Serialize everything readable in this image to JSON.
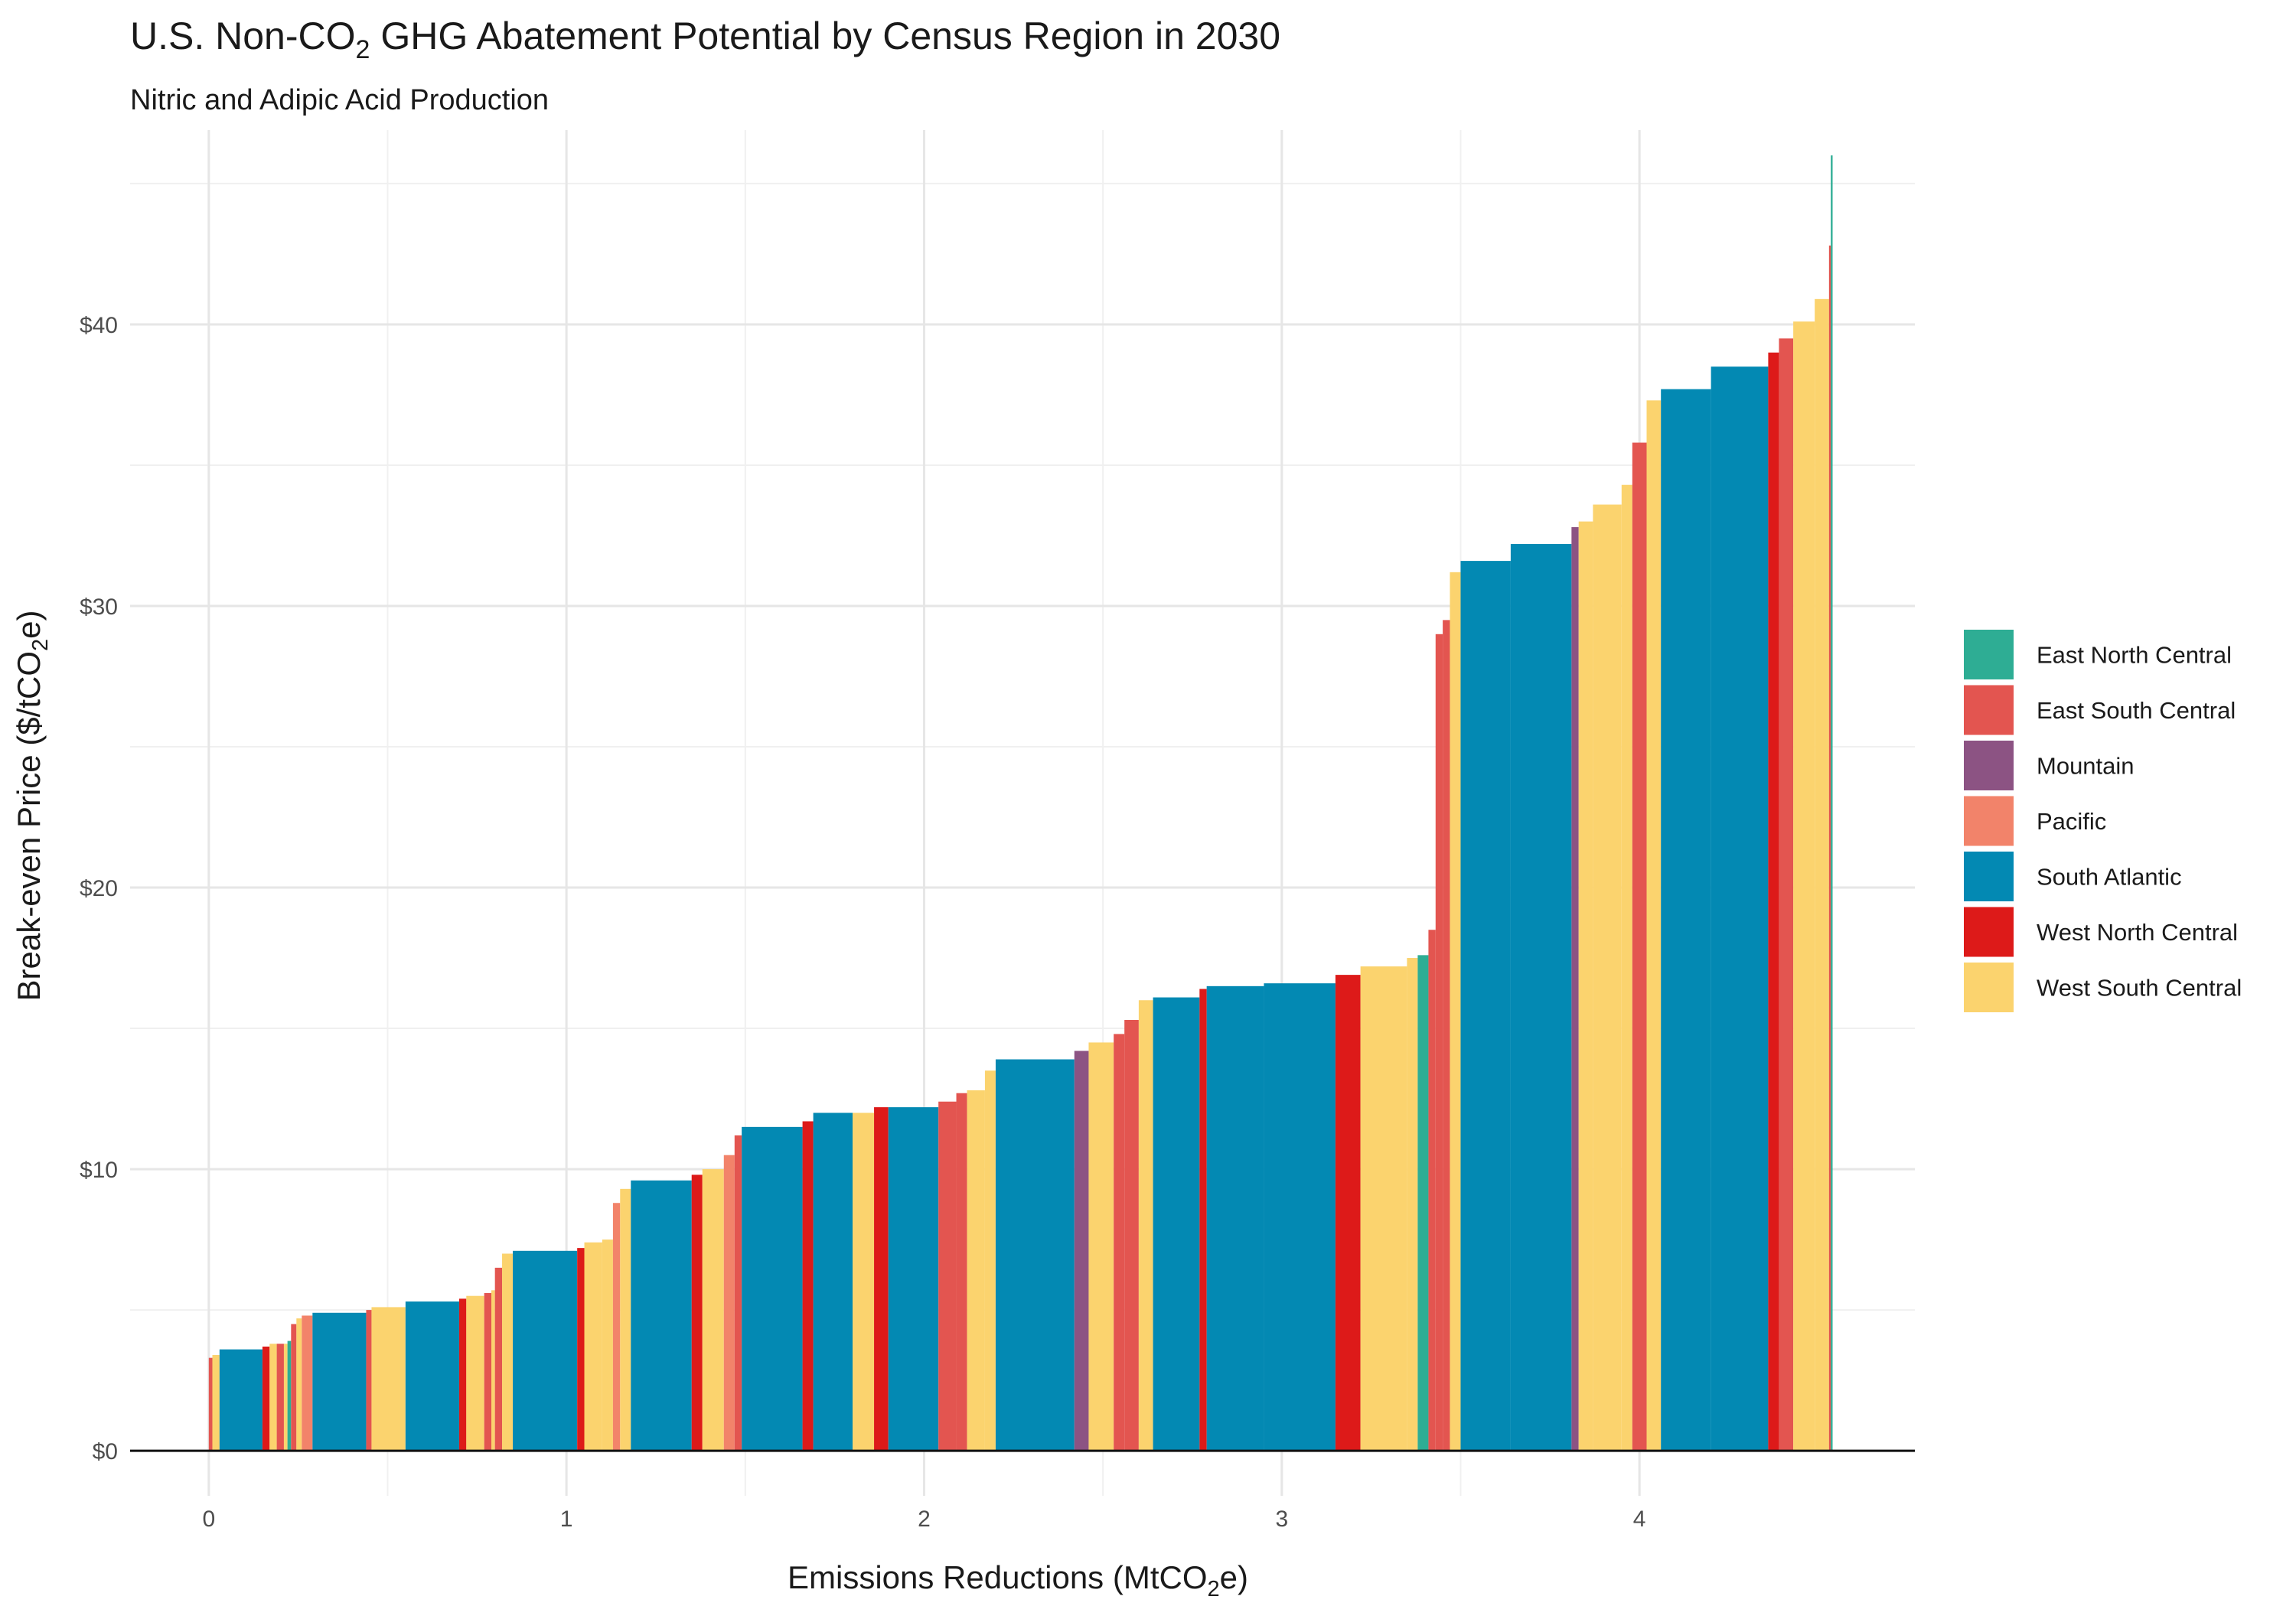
{
  "chart_data": {
    "type": "bar",
    "subtype": "marginal-abatement-cost-curve",
    "title": {
      "prefix": "U.S. Non-CO",
      "sub": "2",
      "suffix": " GHG Abatement Potential by Census Region in 2030"
    },
    "subtitle": "Nitric and Adipic Acid Production",
    "xlabel": {
      "prefix": "Emissions Reductions (MtCO",
      "sub": "2",
      "suffix": "e)"
    },
    "ylabel": {
      "prefix": "Break-even Price ($/tCO",
      "sub": "2",
      "suffix": "e)"
    },
    "xlim": [
      -0.22,
      4.77
    ],
    "ylim": [
      -1.6,
      46.9
    ],
    "x_ticks": [
      {
        "value": 0,
        "label": "0"
      },
      {
        "value": 1,
        "label": "1"
      },
      {
        "value": 2,
        "label": "2"
      },
      {
        "value": 3,
        "label": "3"
      },
      {
        "value": 4,
        "label": "4"
      }
    ],
    "y_ticks": [
      {
        "value": 0,
        "label": "$0"
      },
      {
        "value": 10,
        "label": "$10"
      },
      {
        "value": 20,
        "label": "$20"
      },
      {
        "value": 30,
        "label": "$30"
      },
      {
        "value": 40,
        "label": "$40"
      }
    ],
    "grid": true,
    "legend_position": "right",
    "legend": [
      {
        "name": "East North Central",
        "color": "#2EAD94"
      },
      {
        "name": "East South Central",
        "color": "#E35550"
      },
      {
        "name": "Mountain",
        "color": "#8C5383"
      },
      {
        "name": "Pacific",
        "color": "#F2836A"
      },
      {
        "name": "South Atlantic",
        "color": "#0389B3"
      },
      {
        "name": "West North Central",
        "color": "#DD1A19"
      },
      {
        "name": "West South Central",
        "color": "#FBD36E"
      }
    ],
    "bars": [
      {
        "x0": 0.0,
        "x1": 0.01,
        "y": 3.3,
        "region": "East South Central"
      },
      {
        "x0": 0.01,
        "x1": 0.03,
        "y": 3.4,
        "region": "West South Central"
      },
      {
        "x0": 0.03,
        "x1": 0.15,
        "y": 3.6,
        "region": "South Atlantic"
      },
      {
        "x0": 0.15,
        "x1": 0.17,
        "y": 3.7,
        "region": "West North Central"
      },
      {
        "x0": 0.17,
        "x1": 0.19,
        "y": 3.8,
        "region": "West South Central"
      },
      {
        "x0": 0.19,
        "x1": 0.21,
        "y": 3.8,
        "region": "East South Central"
      },
      {
        "x0": 0.21,
        "x1": 0.22,
        "y": 3.8,
        "region": "West South Central"
      },
      {
        "x0": 0.22,
        "x1": 0.23,
        "y": 3.9,
        "region": "East North Central"
      },
      {
        "x0": 0.23,
        "x1": 0.245,
        "y": 4.5,
        "region": "East South Central"
      },
      {
        "x0": 0.245,
        "x1": 0.26,
        "y": 4.7,
        "region": "West South Central"
      },
      {
        "x0": 0.26,
        "x1": 0.29,
        "y": 4.8,
        "region": "Pacific"
      },
      {
        "x0": 0.29,
        "x1": 0.44,
        "y": 4.9,
        "region": "South Atlantic"
      },
      {
        "x0": 0.44,
        "x1": 0.455,
        "y": 5.0,
        "region": "East South Central"
      },
      {
        "x0": 0.455,
        "x1": 0.55,
        "y": 5.1,
        "region": "West South Central"
      },
      {
        "x0": 0.55,
        "x1": 0.7,
        "y": 5.3,
        "region": "South Atlantic"
      },
      {
        "x0": 0.7,
        "x1": 0.72,
        "y": 5.4,
        "region": "West North Central"
      },
      {
        "x0": 0.72,
        "x1": 0.77,
        "y": 5.5,
        "region": "West South Central"
      },
      {
        "x0": 0.77,
        "x1": 0.79,
        "y": 5.6,
        "region": "East South Central"
      },
      {
        "x0": 0.79,
        "x1": 0.8,
        "y": 5.7,
        "region": "West South Central"
      },
      {
        "x0": 0.8,
        "x1": 0.82,
        "y": 6.5,
        "region": "East South Central"
      },
      {
        "x0": 0.82,
        "x1": 0.85,
        "y": 7.0,
        "region": "West South Central"
      },
      {
        "x0": 0.85,
        "x1": 1.03,
        "y": 7.1,
        "region": "South Atlantic"
      },
      {
        "x0": 1.03,
        "x1": 1.05,
        "y": 7.2,
        "region": "West North Central"
      },
      {
        "x0": 1.05,
        "x1": 1.1,
        "y": 7.4,
        "region": "West South Central"
      },
      {
        "x0": 1.1,
        "x1": 1.13,
        "y": 7.5,
        "region": "West South Central"
      },
      {
        "x0": 1.13,
        "x1": 1.15,
        "y": 8.8,
        "region": "Pacific"
      },
      {
        "x0": 1.15,
        "x1": 1.18,
        "y": 9.3,
        "region": "West South Central"
      },
      {
        "x0": 1.18,
        "x1": 1.35,
        "y": 9.6,
        "region": "South Atlantic"
      },
      {
        "x0": 1.35,
        "x1": 1.38,
        "y": 9.8,
        "region": "West North Central"
      },
      {
        "x0": 1.38,
        "x1": 1.44,
        "y": 10.0,
        "region": "West South Central"
      },
      {
        "x0": 1.44,
        "x1": 1.47,
        "y": 10.5,
        "region": "Pacific"
      },
      {
        "x0": 1.47,
        "x1": 1.49,
        "y": 11.2,
        "region": "East South Central"
      },
      {
        "x0": 1.49,
        "x1": 1.66,
        "y": 11.5,
        "region": "South Atlantic"
      },
      {
        "x0": 1.66,
        "x1": 1.69,
        "y": 11.7,
        "region": "West North Central"
      },
      {
        "x0": 1.69,
        "x1": 1.8,
        "y": 12.0,
        "region": "South Atlantic"
      },
      {
        "x0": 1.8,
        "x1": 1.86,
        "y": 12.0,
        "region": "West South Central"
      },
      {
        "x0": 1.86,
        "x1": 1.9,
        "y": 12.2,
        "region": "West North Central"
      },
      {
        "x0": 1.9,
        "x1": 2.04,
        "y": 12.2,
        "region": "South Atlantic"
      },
      {
        "x0": 2.04,
        "x1": 2.09,
        "y": 12.4,
        "region": "East South Central"
      },
      {
        "x0": 2.09,
        "x1": 2.12,
        "y": 12.7,
        "region": "East South Central"
      },
      {
        "x0": 2.12,
        "x1": 2.17,
        "y": 12.8,
        "region": "West South Central"
      },
      {
        "x0": 2.17,
        "x1": 2.2,
        "y": 13.5,
        "region": "West South Central"
      },
      {
        "x0": 2.2,
        "x1": 2.42,
        "y": 13.9,
        "region": "South Atlantic"
      },
      {
        "x0": 2.42,
        "x1": 2.46,
        "y": 14.2,
        "region": "Mountain"
      },
      {
        "x0": 2.46,
        "x1": 2.53,
        "y": 14.5,
        "region": "West South Central"
      },
      {
        "x0": 2.53,
        "x1": 2.56,
        "y": 14.8,
        "region": "East South Central"
      },
      {
        "x0": 2.56,
        "x1": 2.6,
        "y": 15.3,
        "region": "East South Central"
      },
      {
        "x0": 2.6,
        "x1": 2.64,
        "y": 16.0,
        "region": "West South Central"
      },
      {
        "x0": 2.64,
        "x1": 2.77,
        "y": 16.1,
        "region": "South Atlantic"
      },
      {
        "x0": 2.77,
        "x1": 2.79,
        "y": 16.4,
        "region": "West North Central"
      },
      {
        "x0": 2.79,
        "x1": 2.95,
        "y": 16.5,
        "region": "South Atlantic"
      },
      {
        "x0": 2.95,
        "x1": 3.15,
        "y": 16.6,
        "region": "South Atlantic"
      },
      {
        "x0": 3.15,
        "x1": 3.22,
        "y": 16.9,
        "region": "West North Central"
      },
      {
        "x0": 3.22,
        "x1": 3.35,
        "y": 17.2,
        "region": "West South Central"
      },
      {
        "x0": 3.35,
        "x1": 3.38,
        "y": 17.5,
        "region": "West South Central"
      },
      {
        "x0": 3.38,
        "x1": 3.41,
        "y": 17.6,
        "region": "East North Central"
      },
      {
        "x0": 3.41,
        "x1": 3.43,
        "y": 18.5,
        "region": "East South Central"
      },
      {
        "x0": 3.43,
        "x1": 3.45,
        "y": 29.0,
        "region": "East South Central"
      },
      {
        "x0": 3.45,
        "x1": 3.47,
        "y": 29.5,
        "region": "East South Central"
      },
      {
        "x0": 3.47,
        "x1": 3.5,
        "y": 31.2,
        "region": "West South Central"
      },
      {
        "x0": 3.5,
        "x1": 3.64,
        "y": 31.6,
        "region": "South Atlantic"
      },
      {
        "x0": 3.64,
        "x1": 3.81,
        "y": 32.2,
        "region": "South Atlantic"
      },
      {
        "x0": 3.81,
        "x1": 3.83,
        "y": 32.8,
        "region": "Mountain"
      },
      {
        "x0": 3.83,
        "x1": 3.87,
        "y": 33.0,
        "region": "West South Central"
      },
      {
        "x0": 3.87,
        "x1": 3.95,
        "y": 33.6,
        "region": "West South Central"
      },
      {
        "x0": 3.95,
        "x1": 3.98,
        "y": 34.3,
        "region": "West South Central"
      },
      {
        "x0": 3.98,
        "x1": 4.02,
        "y": 35.8,
        "region": "East South Central"
      },
      {
        "x0": 4.02,
        "x1": 4.06,
        "y": 37.3,
        "region": "West South Central"
      },
      {
        "x0": 4.06,
        "x1": 4.2,
        "y": 37.7,
        "region": "South Atlantic"
      },
      {
        "x0": 4.2,
        "x1": 4.36,
        "y": 38.5,
        "region": "South Atlantic"
      },
      {
        "x0": 4.36,
        "x1": 4.39,
        "y": 39.0,
        "region": "West North Central"
      },
      {
        "x0": 4.39,
        "x1": 4.43,
        "y": 39.5,
        "region": "East South Central"
      },
      {
        "x0": 4.43,
        "x1": 4.49,
        "y": 40.1,
        "region": "West South Central"
      },
      {
        "x0": 4.49,
        "x1": 4.53,
        "y": 40.9,
        "region": "West South Central"
      },
      {
        "x0": 4.53,
        "x1": 4.535,
        "y": 42.8,
        "region": "East South Central"
      },
      {
        "x0": 4.535,
        "x1": 4.54,
        "y": 46.0,
        "region": "East North Central"
      }
    ]
  }
}
